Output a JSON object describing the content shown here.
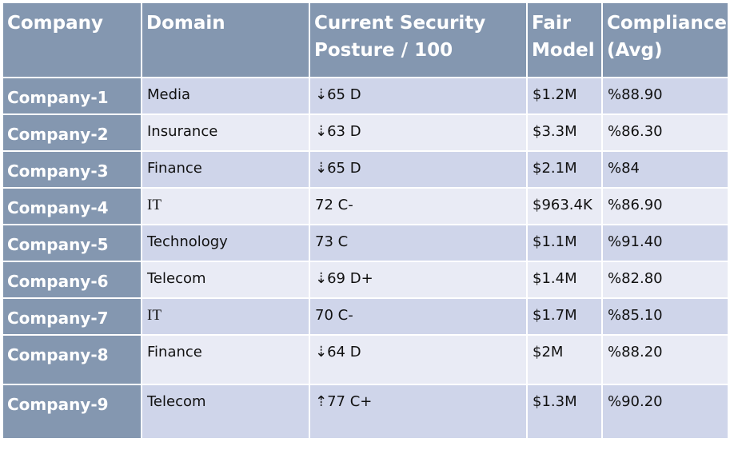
{
  "headers": {
    "company": "Company",
    "domain": "Domain",
    "posture": "Current Security Posture / 100",
    "fair": "Fair Model",
    "compliance": "Compliance (Avg)"
  },
  "rows": [
    {
      "company": "Company-1",
      "domain": "Media",
      "posture": "⇣65 D",
      "fair": "$1.2M",
      "compliance": "%88.90"
    },
    {
      "company": "Company-2",
      "domain": "Insurance",
      "posture": "⇣63 D",
      "fair": "$3.3M",
      "compliance": "%86.30"
    },
    {
      "company": "Company-3",
      "domain": "Finance",
      "posture": "⇣65 D",
      "fair": "$2.1M",
      "compliance": "%84"
    },
    {
      "company": "Company-4",
      "domain": "IT",
      "posture": "72 C-",
      "fair": "$963.4K",
      "compliance": "%86.90"
    },
    {
      "company": "Company-5",
      "domain": "Technology",
      "posture": "73 C",
      "fair": "$1.1M",
      "compliance": "%91.40"
    },
    {
      "company": "Company-6",
      "domain": "Telecom",
      "posture": "⇣69 D+",
      "fair": "$1.4M",
      "compliance": "%82.80"
    },
    {
      "company": "Company-7",
      "domain": "IT",
      "posture": "70 C-",
      "fair": "$1.7M",
      "compliance": "%85.10"
    },
    {
      "company": "Company-8",
      "domain": "Finance",
      "posture": "⇣64 D",
      "fair": "$2M",
      "compliance": "%88.20"
    },
    {
      "company": "Company-9",
      "domain": "Telecom",
      "posture": "⇡77 C+",
      "fair": "$1.3M",
      "compliance": "%90.20"
    }
  ]
}
